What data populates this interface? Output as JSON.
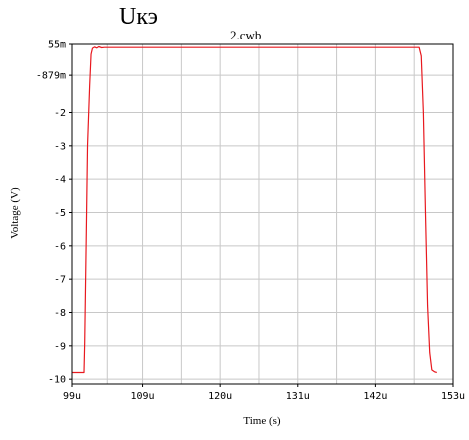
{
  "heading": "Uкэ",
  "file_label": "2.cwb",
  "chart_data": {
    "type": "line",
    "xlabel": "Time (s)",
    "ylabel": "Voltage (V)",
    "x_ticks": [
      {
        "value": 99,
        "label": "99u"
      },
      {
        "value": 109,
        "label": "109u"
      },
      {
        "value": 120,
        "label": "120u"
      },
      {
        "value": 131,
        "label": "131u"
      },
      {
        "value": 142,
        "label": "142u"
      },
      {
        "value": 153,
        "label": "153u"
      }
    ],
    "x_minor_grid": [
      104,
      114.5,
      125.5,
      136.5,
      147.5
    ],
    "y_ticks": [
      {
        "value": 0.055,
        "label": "55m"
      },
      {
        "value": -0.879,
        "label": "-879m"
      },
      {
        "value": -2,
        "label": "-2"
      },
      {
        "value": -3,
        "label": "-3"
      },
      {
        "value": -4,
        "label": "-4"
      },
      {
        "value": -5,
        "label": "-5"
      },
      {
        "value": -6,
        "label": "-6"
      },
      {
        "value": -7,
        "label": "-7"
      },
      {
        "value": -8,
        "label": "-8"
      },
      {
        "value": -9,
        "label": "-9"
      },
      {
        "value": -10,
        "label": "-10"
      }
    ],
    "xlim": [
      99,
      153
    ],
    "ylim": [
      -10.145,
      0.055
    ],
    "grid": true,
    "series": [
      {
        "color": "#e8191f",
        "points": [
          [
            99.0,
            -9.8
          ],
          [
            100.7,
            -9.8
          ],
          [
            100.8,
            -8.9
          ],
          [
            101.0,
            -6.0
          ],
          [
            101.2,
            -3.0
          ],
          [
            101.5,
            -1.2
          ],
          [
            101.7,
            -0.25
          ],
          [
            101.9,
            -0.07
          ],
          [
            102.2,
            -0.03
          ],
          [
            102.5,
            -0.06
          ],
          [
            102.8,
            -0.02
          ],
          [
            103.2,
            -0.05
          ],
          [
            103.6,
            -0.04
          ],
          [
            104.0,
            -0.04
          ],
          [
            148.2,
            -0.04
          ],
          [
            148.5,
            -0.3
          ],
          [
            148.8,
            -2.0
          ],
          [
            149.1,
            -5.0
          ],
          [
            149.4,
            -7.8
          ],
          [
            149.7,
            -9.2
          ],
          [
            150.0,
            -9.72
          ],
          [
            150.4,
            -9.78
          ],
          [
            150.7,
            -9.8
          ]
        ]
      }
    ]
  }
}
